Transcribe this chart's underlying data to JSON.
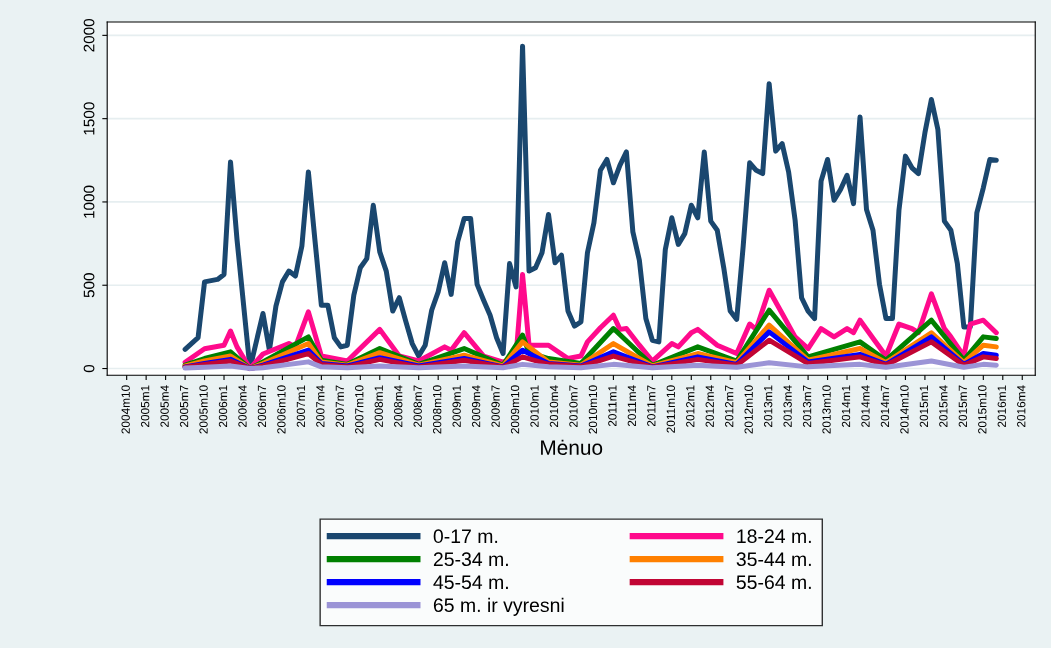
{
  "chart_data": {
    "type": "line",
    "xlabel": "Mėnuo",
    "xlim": [
      "2004-07",
      "2016-06"
    ],
    "ylim": [
      -40,
      2080
    ],
    "xticks": [
      {
        "value": "2004-10",
        "label": "2004m10"
      },
      {
        "value": "2005-01",
        "label": "2005m1"
      },
      {
        "value": "2005-04",
        "label": "2005m4"
      },
      {
        "value": "2005-07",
        "label": "2005m7"
      },
      {
        "value": "2005-10",
        "label": "2005m10"
      },
      {
        "value": "2006-01",
        "label": "2006m1"
      },
      {
        "value": "2006-04",
        "label": "2006m4"
      },
      {
        "value": "2006-07",
        "label": "2006m7"
      },
      {
        "value": "2006-10",
        "label": "2006m10"
      },
      {
        "value": "2007-01",
        "label": "2007m1"
      },
      {
        "value": "2007-04",
        "label": "2007m4"
      },
      {
        "value": "2007-07",
        "label": "2007m7"
      },
      {
        "value": "2007-10",
        "label": "2007m10"
      },
      {
        "value": "2008-01",
        "label": "2008m1"
      },
      {
        "value": "2008-04",
        "label": "2008m4"
      },
      {
        "value": "2008-07",
        "label": "2008m7"
      },
      {
        "value": "2008-10",
        "label": "2008m10"
      },
      {
        "value": "2009-01",
        "label": "2009m1"
      },
      {
        "value": "2009-04",
        "label": "2009m4"
      },
      {
        "value": "2009-07",
        "label": "2009m7"
      },
      {
        "value": "2009-10",
        "label": "2009m10"
      },
      {
        "value": "2010-01",
        "label": "2010m1"
      },
      {
        "value": "2010-04",
        "label": "2010m4"
      },
      {
        "value": "2010-07",
        "label": "2010m7"
      },
      {
        "value": "2010-10",
        "label": "2010m10"
      },
      {
        "value": "2011-01",
        "label": "2011m1"
      },
      {
        "value": "2011-04",
        "label": "2011m4"
      },
      {
        "value": "2011-07",
        "label": "2011m7"
      },
      {
        "value": "2011-10",
        "label": "2011m10"
      },
      {
        "value": "2012-01",
        "label": "2012m1"
      },
      {
        "value": "2012-04",
        "label": "2012m4"
      },
      {
        "value": "2012-07",
        "label": "2012m7"
      },
      {
        "value": "2012-10",
        "label": "2012m10"
      },
      {
        "value": "2013-01",
        "label": "2013m1"
      },
      {
        "value": "2013-04",
        "label": "2013m4"
      },
      {
        "value": "2013-07",
        "label": "2013m7"
      },
      {
        "value": "2013-10",
        "label": "2013m10"
      },
      {
        "value": "2014-01",
        "label": "2014m1"
      },
      {
        "value": "2014-04",
        "label": "2014m4"
      },
      {
        "value": "2014-07",
        "label": "2014m7"
      },
      {
        "value": "2014-10",
        "label": "2014m10"
      },
      {
        "value": "2015-01",
        "label": "2015m1"
      },
      {
        "value": "2015-04",
        "label": "2015m4"
      },
      {
        "value": "2015-07",
        "label": "2015m7"
      },
      {
        "value": "2015-10",
        "label": "2015m10"
      },
      {
        "value": "2016-01",
        "label": "2016m1"
      },
      {
        "value": "2016-04",
        "label": "2016m4"
      }
    ],
    "yticks": [
      0,
      500,
      1000,
      1500,
      2000
    ],
    "grid": "y",
    "legend": "bottom",
    "marker": "none",
    "line_style": "solid",
    "series": [
      {
        "name": "0-17 m.",
        "color": "#1a476f",
        "x": [
          "2005-07",
          "2005-09",
          "2005-10",
          "2005-12",
          "2006-01",
          "2006-02",
          "2006-03",
          "2006-05",
          "2006-07",
          "2006-08",
          "2006-09",
          "2006-10",
          "2006-11",
          "2006-12",
          "2007-01",
          "2007-02",
          "2007-03",
          "2007-04",
          "2007-05",
          "2007-06",
          "2007-07",
          "2007-08",
          "2007-09",
          "2007-10",
          "2007-11",
          "2007-12",
          "2008-01",
          "2008-02",
          "2008-03",
          "2008-04",
          "2008-05",
          "2008-06",
          "2008-07",
          "2008-08",
          "2008-09",
          "2008-10",
          "2008-11",
          "2008-12",
          "2009-01",
          "2009-02",
          "2009-03",
          "2009-04",
          "2009-05",
          "2009-06",
          "2009-07",
          "2009-08",
          "2009-09",
          "2009-10",
          "2009-11",
          "2009-12",
          "2010-01",
          "2010-02",
          "2010-03",
          "2010-04",
          "2010-05",
          "2010-06",
          "2010-07",
          "2010-08",
          "2010-09",
          "2010-10",
          "2010-11",
          "2010-12",
          "2011-01",
          "2011-02",
          "2011-03",
          "2011-04",
          "2011-05",
          "2011-06",
          "2011-07",
          "2011-08",
          "2011-09",
          "2011-10",
          "2011-11",
          "2011-12",
          "2012-01",
          "2012-02",
          "2012-03",
          "2012-04",
          "2012-05",
          "2012-06",
          "2012-07",
          "2012-08",
          "2012-09",
          "2012-10",
          "2012-11",
          "2012-12",
          "2013-01",
          "2013-02",
          "2013-03",
          "2013-04",
          "2013-05",
          "2013-06",
          "2013-07",
          "2013-08",
          "2013-09",
          "2013-10",
          "2013-11",
          "2013-12",
          "2014-01",
          "2014-02",
          "2014-03",
          "2014-04",
          "2014-05",
          "2014-06",
          "2014-07",
          "2014-08",
          "2014-09",
          "2014-10",
          "2014-11",
          "2014-12",
          "2015-01",
          "2015-02",
          "2015-03",
          "2015-04",
          "2015-05",
          "2015-06",
          "2015-07",
          "2015-08",
          "2015-09",
          "2015-10",
          "2015-11",
          "2015-12"
        ],
        "values": [
          115,
          185,
          520,
          535,
          565,
          1240,
          775,
          0,
          330,
          110,
          375,
          520,
          585,
          555,
          735,
          1180,
          775,
          380,
          380,
          185,
          130,
          140,
          440,
          605,
          660,
          980,
          700,
          585,
          345,
          425,
          285,
          150,
          75,
          140,
          350,
          460,
          635,
          445,
          760,
          900,
          900,
          505,
          410,
          320,
          185,
          90,
          630,
          490,
          1935,
          585,
          605,
          695,
          925,
          635,
          680,
          345,
          255,
          280,
          695,
          875,
          1190,
          1255,
          1115,
          1220,
          1300,
          820,
          650,
          300,
          170,
          160,
          715,
          905,
          745,
          810,
          980,
          905,
          1300,
          885,
          830,
          605,
          345,
          295,
          735,
          1235,
          1190,
          1170,
          1710,
          1305,
          1350,
          1180,
          890,
          425,
          345,
          300,
          1125,
          1255,
          1010,
          1075,
          1160,
          990,
          1510,
          955,
          830,
          505,
          300,
          300,
          950,
          1275,
          1205,
          1170,
          1415,
          1615,
          1435,
          885,
          830,
          630,
          250,
          250,
          935,
          1085,
          1255,
          1250
        ]
      },
      {
        "name": "18-24 m.",
        "color": "#ff0a8c",
        "x": [
          "2005-07",
          "2005-10",
          "2006-01",
          "2006-02",
          "2006-03",
          "2006-05",
          "2006-07",
          "2006-11",
          "2006-12",
          "2007-02",
          "2007-04",
          "2007-08",
          "2008-01",
          "2008-04",
          "2008-07",
          "2008-11",
          "2008-12",
          "2009-02",
          "2009-05",
          "2009-08",
          "2009-10",
          "2009-11",
          "2009-12",
          "2010-03",
          "2010-06",
          "2010-08",
          "2010-09",
          "2010-11",
          "2011-01",
          "2011-02",
          "2011-03",
          "2011-05",
          "2011-07",
          "2011-10",
          "2011-11",
          "2012-01",
          "2012-02",
          "2012-05",
          "2012-08",
          "2012-10",
          "2012-11",
          "2013-01",
          "2013-03",
          "2013-05",
          "2013-07",
          "2013-09",
          "2013-11",
          "2014-01",
          "2014-02",
          "2014-03",
          "2014-05",
          "2014-07",
          "2014-09",
          "2014-11",
          "2014-12",
          "2015-02",
          "2015-04",
          "2015-05",
          "2015-07",
          "2015-08",
          "2015-10",
          "2015-12"
        ],
        "values": [
          38,
          119,
          140,
          225,
          130,
          0,
          87,
          150,
          130,
          340,
          75,
          45,
          235,
          75,
          45,
          130,
          110,
          215,
          75,
          38,
          75,
          565,
          140,
          140,
          60,
          75,
          160,
          245,
          320,
          235,
          240,
          140,
          45,
          150,
          130,
          215,
          235,
          140,
          90,
          267,
          235,
          470,
          330,
          190,
          119,
          240,
          190,
          240,
          215,
          290,
          182,
          75,
          267,
          240,
          215,
          448,
          240,
          190,
          75,
          267,
          290,
          215
        ]
      },
      {
        "name": "25-34 m.",
        "color": "#008000",
        "x": [
          "2005-07",
          "2005-10",
          "2006-02",
          "2006-05",
          "2006-07",
          "2007-02",
          "2007-04",
          "2007-08",
          "2008-01",
          "2008-07",
          "2009-02",
          "2009-08",
          "2009-11",
          "2009-12",
          "2010-03",
          "2010-08",
          "2011-01",
          "2011-07",
          "2012-02",
          "2012-08",
          "2013-01",
          "2013-07",
          "2014-03",
          "2014-07",
          "2015-02",
          "2015-07",
          "2015-10",
          "2015-12"
        ],
        "values": [
          20,
          60,
          100,
          0,
          40,
          190,
          50,
          25,
          120,
          25,
          120,
          20,
          200,
          95,
          60,
          30,
          240,
          20,
          130,
          45,
          350,
          70,
          160,
          50,
          290,
          50,
          190,
          180
        ]
      },
      {
        "name": "35-44 m.",
        "color": "#ff8000",
        "x": [
          "2005-07",
          "2005-10",
          "2006-02",
          "2006-05",
          "2006-07",
          "2007-02",
          "2007-04",
          "2007-08",
          "2008-01",
          "2008-07",
          "2009-02",
          "2009-08",
          "2009-11",
          "2010-03",
          "2010-08",
          "2011-01",
          "2011-07",
          "2012-02",
          "2012-08",
          "2013-01",
          "2013-07",
          "2014-03",
          "2014-07",
          "2015-02",
          "2015-07",
          "2015-10",
          "2015-12"
        ],
        "values": [
          15,
          45,
          75,
          0,
          30,
          150,
          40,
          20,
          95,
          20,
          80,
          15,
          160,
          40,
          20,
          150,
          15,
          90,
          35,
          260,
          50,
          120,
          35,
          215,
          35,
          140,
          130
        ]
      },
      {
        "name": "45-54 m.",
        "color": "#0000ff",
        "x": [
          "2005-07",
          "2005-10",
          "2006-02",
          "2006-05",
          "2006-07",
          "2007-02",
          "2007-04",
          "2007-08",
          "2008-01",
          "2008-07",
          "2009-02",
          "2009-08",
          "2009-11",
          "2010-03",
          "2010-08",
          "2011-01",
          "2011-07",
          "2012-02",
          "2012-08",
          "2013-01",
          "2013-07",
          "2014-03",
          "2014-07",
          "2015-02",
          "2015-07",
          "2015-10",
          "2015-12"
        ],
        "values": [
          10,
          30,
          55,
          0,
          20,
          110,
          30,
          15,
          65,
          15,
          60,
          10,
          110,
          30,
          15,
          100,
          10,
          70,
          25,
          220,
          40,
          85,
          25,
          190,
          25,
          90,
          80
        ]
      },
      {
        "name": "55-64 m.",
        "color": "#c10534",
        "x": [
          "2005-07",
          "2005-10",
          "2006-02",
          "2006-05",
          "2006-07",
          "2007-02",
          "2007-04",
          "2007-08",
          "2008-01",
          "2008-07",
          "2009-02",
          "2009-08",
          "2009-11",
          "2010-03",
          "2010-08",
          "2011-01",
          "2011-07",
          "2012-02",
          "2012-08",
          "2013-01",
          "2013-07",
          "2014-03",
          "2014-07",
          "2015-02",
          "2015-07",
          "2015-10",
          "2015-12"
        ],
        "values": [
          8,
          25,
          45,
          0,
          15,
          90,
          25,
          10,
          55,
          10,
          50,
          8,
          70,
          25,
          12,
          75,
          8,
          55,
          20,
          170,
          30,
          70,
          20,
          160,
          20,
          70,
          60
        ]
      },
      {
        "name": "65 m. ir vyresni",
        "color": "#9b94d6",
        "x": [
          "2005-07",
          "2005-10",
          "2006-02",
          "2006-05",
          "2006-07",
          "2007-02",
          "2007-04",
          "2007-08",
          "2008-01",
          "2008-07",
          "2009-02",
          "2009-08",
          "2009-11",
          "2010-03",
          "2010-08",
          "2011-01",
          "2011-07",
          "2012-02",
          "2012-08",
          "2013-01",
          "2013-07",
          "2014-03",
          "2014-07",
          "2015-02",
          "2015-07",
          "2015-10",
          "2015-12"
        ],
        "values": [
          3,
          8,
          15,
          0,
          5,
          40,
          10,
          5,
          15,
          5,
          15,
          5,
          25,
          10,
          5,
          25,
          5,
          20,
          8,
          35,
          10,
          25,
          8,
          45,
          8,
          25,
          20
        ]
      }
    ]
  }
}
